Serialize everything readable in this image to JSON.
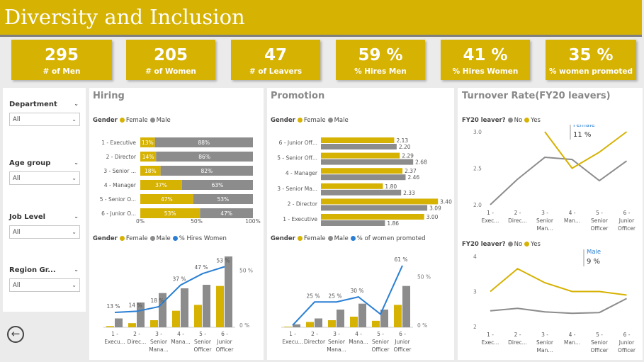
{
  "title": "Diversity and Inclusion",
  "colors": {
    "gold": "#d6b203",
    "grey": "#8c8c8c",
    "blue": "#2a7fd4",
    "panel": "#ffffff",
    "bg": "#ebebeb"
  },
  "kpis": [
    {
      "value": "295",
      "label": "# of Men"
    },
    {
      "value": "205",
      "label": "# of Women"
    },
    {
      "value": "47",
      "label": "# of Leavers"
    },
    {
      "value": "59 %",
      "label": "% Hires Men"
    },
    {
      "value": "41 %",
      "label": "% Hires Women"
    },
    {
      "value": "35 %",
      "label": "% women promoted"
    }
  ],
  "slicers": [
    {
      "label": "Department",
      "value": "All"
    },
    {
      "label": "Age group",
      "value": "All"
    },
    {
      "label": "Job Level",
      "value": "All"
    },
    {
      "label": "Region Gr...",
      "value": "All"
    }
  ],
  "panels": {
    "hiring": "Hiring",
    "promotion": "Promotion",
    "turnover": "Turnover Rate(FY20 leavers)"
  },
  "legends": {
    "gender": "Gender",
    "female": "Female",
    "male": "Male",
    "hires_women": "% Hires Women",
    "women_promoted": "% of women promoted",
    "fy20": "FY20 leaver?",
    "no": "No",
    "yes": "Yes"
  },
  "chart_data": [
    {
      "type": "bar",
      "stacked": "100%",
      "orientation": "horizontal",
      "categories": [
        "1 - Executive",
        "2 - Director",
        "3 - Senior ...",
        "4 - Manager",
        "5 - Senior O...",
        "6 - Junior O..."
      ],
      "series": [
        {
          "name": "Female",
          "values": [
            13,
            14,
            18,
            37,
            47,
            53
          ],
          "labels": [
            "13%",
            "14%",
            "18%",
            "37%",
            "47%",
            "53%"
          ]
        },
        {
          "name": "Male",
          "values": [
            88,
            86,
            82,
            63,
            53,
            47
          ],
          "labels": [
            "88%",
            "86%",
            "82%",
            "63%",
            "53%",
            "47%"
          ]
        }
      ],
      "x_ticks": [
        "0%",
        "50%",
        "100%"
      ]
    },
    {
      "type": "bar",
      "orientation": "horizontal",
      "categories": [
        "6 - Junior Off...",
        "5 - Senior Off...",
        "4 - Manager",
        "3 - Senior Ma...",
        "2 - Director",
        "1 - Executive"
      ],
      "series": [
        {
          "name": "Female",
          "values": [
            2.13,
            2.29,
            2.37,
            1.8,
            3.4,
            3.0
          ],
          "labels": [
            "2.13",
            "2.29",
            "2.37",
            "1.80",
            "3.40",
            "3.00"
          ]
        },
        {
          "name": "Male",
          "values": [
            2.2,
            2.68,
            2.46,
            2.33,
            3.09,
            1.86
          ],
          "labels": [
            "2.20",
            "2.68",
            "2.46",
            "2.33",
            "3.09",
            "1.86"
          ]
        }
      ]
    },
    {
      "type": "bar",
      "combo_line": true,
      "categories": [
        "1 - Execu...",
        "2 - Direc...",
        "3 - Senior Mana...",
        "4 - Mana...",
        "5 - Senior Officer",
        "6 - Junior Officer"
      ],
      "series": [
        {
          "name": "Female",
          "values": [
            2,
            7,
            12,
            28,
            38,
            70
          ]
        },
        {
          "name": "Male",
          "values": [
            15,
            42,
            58,
            66,
            72,
            120
          ]
        },
        {
          "name": "% Hires Women",
          "values": [
            13,
            14,
            18,
            37,
            47,
            53
          ],
          "labels": [
            "13 %",
            "14 %",
            "18 %",
            "37 %",
            "47 %",
            "53 %"
          ]
        }
      ],
      "y2_ticks": [
        "0 %",
        "50 %"
      ]
    },
    {
      "type": "bar",
      "combo_line": true,
      "categories": [
        "1 - Execu...",
        "2 - Director",
        "3 - Senior Mana...",
        "4 - Mana...",
        "5 - Senior Officer",
        "6 - Junior Officer"
      ],
      "series": [
        {
          "name": "Female",
          "values": [
            1,
            9,
            12,
            18,
            11,
            38
          ]
        },
        {
          "name": "Male",
          "values": [
            5,
            15,
            30,
            40,
            30,
            70
          ]
        },
        {
          "name": "% of women promoted",
          "values": [
            2,
            25,
            25,
            30,
            13,
            61
          ],
          "labels": [
            "",
            "25 %",
            "25 %",
            "30 %",
            "",
            "61 %"
          ]
        }
      ],
      "y2_ticks": [
        "0 %",
        "50 %"
      ]
    },
    {
      "type": "line",
      "categories": [
        "1 - Exec...",
        "2 - Direc...",
        "3 - Senior Man...",
        "4 - Man...",
        "5 - Senior Officer",
        "6 - Junior Officer"
      ],
      "series": [
        {
          "name": "No",
          "values": [
            2.0,
            2.35,
            2.65,
            2.62,
            2.33,
            2.6
          ]
        },
        {
          "name": "Yes",
          "values": [
            null,
            null,
            3.0,
            2.5,
            2.72,
            3.0
          ]
        }
      ],
      "y_ticks": [
        "2.0",
        "2.5",
        "3.0"
      ],
      "tooltip": {
        "label": "Female",
        "value": "11 %"
      }
    },
    {
      "type": "line",
      "categories": [
        "1 - Exec...",
        "2 - Direc...",
        "3 - Senior Man...",
        "4 - Man...",
        "5 - Senior Officer",
        "6 - Junior Officer"
      ],
      "series": [
        {
          "name": "No",
          "values": [
            2.45,
            2.52,
            2.42,
            2.38,
            2.4,
            2.8
          ]
        },
        {
          "name": "Yes",
          "values": [
            3.0,
            3.65,
            3.25,
            3.0,
            3.0,
            2.9
          ]
        }
      ],
      "y_ticks": [
        "2",
        "3",
        "4"
      ],
      "tooltip": {
        "label": "Male",
        "value": "9 %"
      }
    }
  ]
}
